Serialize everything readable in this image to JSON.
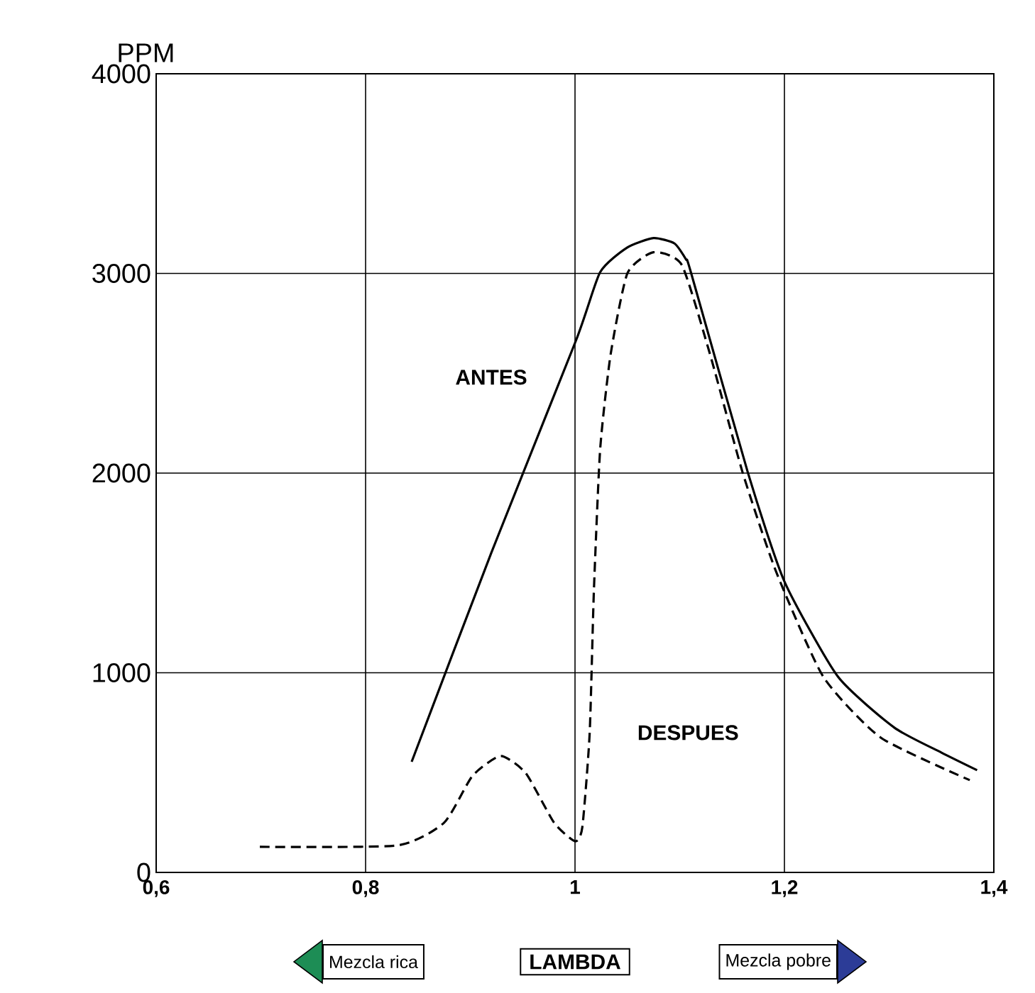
{
  "chart_data": {
    "type": "line",
    "ylabel": "PPM",
    "xlabel": "LAMBDA",
    "annotations": [
      "Mezcla rica",
      "Mezcla pobre"
    ],
    "xlim": [
      0.6,
      1.4
    ],
    "ylim": [
      0,
      4000
    ],
    "xticks": [
      {
        "value": 0.6,
        "label": "0,6"
      },
      {
        "value": 0.8,
        "label": "0,8"
      },
      1,
      {
        "value": 1.2,
        "label": "1,2"
      },
      {
        "value": 1.4,
        "label": "1,4"
      }
    ],
    "yticks": [
      0,
      1000,
      2000,
      3000,
      4000
    ],
    "grid": true,
    "legend": false,
    "marker": "none",
    "series": [
      {
        "name": "ANTES",
        "color": "#000000",
        "line_style": "solid",
        "x": [
          0.844,
          0.92,
          1.001,
          1.024,
          1.05,
          1.075,
          1.095,
          1.106,
          1.111,
          1.165,
          1.2,
          1.251,
          1.305,
          1.35,
          1.384
        ],
        "values": [
          554,
          1600,
          2665,
          3006,
          3130,
          3177,
          3150,
          3070,
          3000,
          2004,
          1457,
          981,
          725,
          600,
          512
        ]
      },
      {
        "name": "DESPUES",
        "color": "#000000",
        "line_style": "dashed",
        "x": [
          0.699,
          0.83,
          0.875,
          0.902,
          0.929,
          0.953,
          0.98,
          1.0,
          1.007,
          1.014,
          1.018,
          1.024,
          1.034,
          1.05,
          1.075,
          1.102,
          1.129,
          1.16,
          1.192,
          1.237,
          1.292,
          1.377
        ],
        "values": [
          128,
          135,
          249,
          483,
          583,
          497,
          249,
          156,
          227,
          697,
          1407,
          2118,
          2594,
          3000,
          3106,
          3042,
          2594,
          2004,
          1507,
          981,
          675,
          462
        ]
      }
    ]
  }
}
